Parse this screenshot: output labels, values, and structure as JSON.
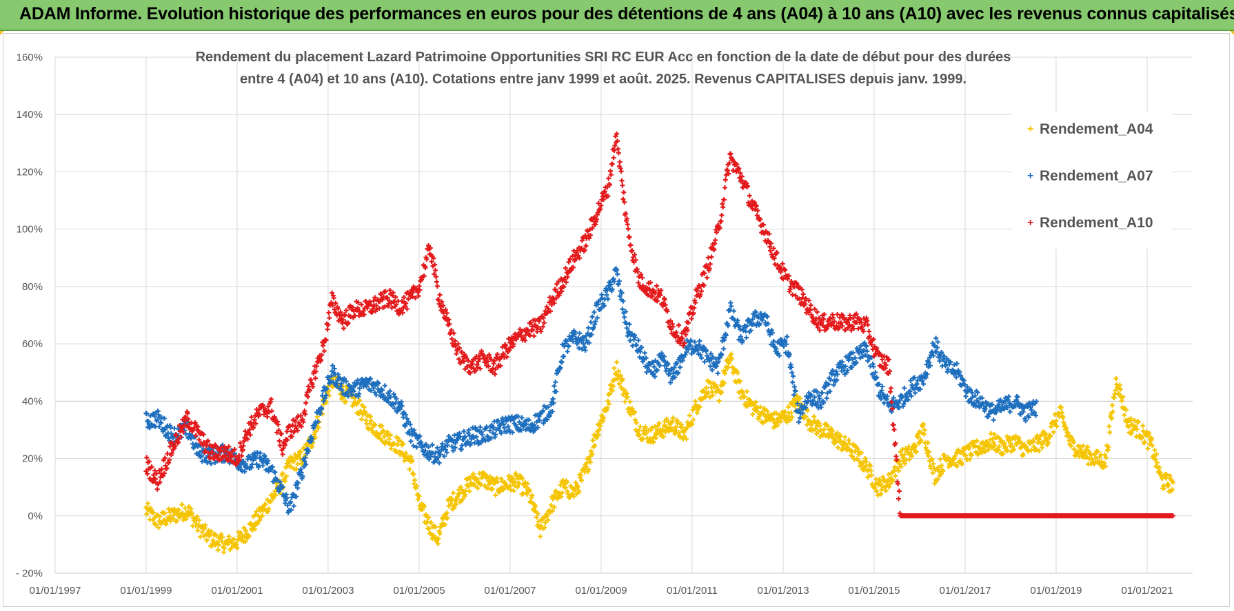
{
  "banner": {
    "text": "ADAM Informe. Evolution historique des performances en euros pour des détentions de 4 ans (A04) à 10 ans (A10) avec les revenus connus capitalisés"
  },
  "chart_data": {
    "type": "scatter",
    "title_line1": "Rendement du placement Lazard Patrimoine Opportunities SRI RC EUR Acc  en fonction de la date de début pour des durées",
    "title_line2": "entre 4 (A04) et 10 ans (A10).  Cotations entre janv 1999 et août. 2025. Revenus CAPITALISES depuis janv. 1999.",
    "xlabel": "",
    "ylabel": "",
    "x_axis": {
      "type": "date",
      "min": "1997-01-01",
      "max": "2022-01-01",
      "ticks": [
        "01/01/1997",
        "01/01/1999",
        "01/01/2001",
        "01/01/2003",
        "01/01/2005",
        "01/01/2007",
        "01/01/2009",
        "01/01/2011",
        "01/01/2013",
        "01/01/2015",
        "01/01/2017",
        "01/01/2019",
        "01/01/2021"
      ]
    },
    "y_axis": {
      "min": -20,
      "max": 160,
      "unit": "%",
      "ticks": [
        "- 20%",
        "0%",
        "20%",
        "40%",
        "60%",
        "80%",
        "100%",
        "120%",
        "140%",
        "160%"
      ]
    },
    "grid": true,
    "legend_position": "top-right",
    "marker": "+",
    "series": [
      {
        "name": "Rendement_A04",
        "color": "#f5c400",
        "points": [
          [
            "1999-01-01",
            2
          ],
          [
            "1999-04-01",
            -2
          ],
          [
            "1999-08-01",
            0
          ],
          [
            "1999-12-01",
            2
          ],
          [
            "2000-03-01",
            -4
          ],
          [
            "2000-06-01",
            -8
          ],
          [
            "2000-10-01",
            -10
          ],
          [
            "2001-01-01",
            -9
          ],
          [
            "2001-04-01",
            -5
          ],
          [
            "2001-07-01",
            0
          ],
          [
            "2001-10-01",
            6
          ],
          [
            "2002-01-01",
            12
          ],
          [
            "2002-03-01",
            18
          ],
          [
            "2002-06-01",
            20
          ],
          [
            "2002-09-01",
            27
          ],
          [
            "2002-12-01",
            40
          ],
          [
            "2003-02-01",
            47
          ],
          [
            "2003-05-01",
            43
          ],
          [
            "2003-08-01",
            40
          ],
          [
            "2003-11-01",
            34
          ],
          [
            "2004-02-01",
            30
          ],
          [
            "2004-05-01",
            27
          ],
          [
            "2004-08-01",
            24
          ],
          [
            "2004-11-01",
            18
          ],
          [
            "2005-01-01",
            4
          ],
          [
            "2005-04-01",
            -4
          ],
          [
            "2005-06-01",
            -8
          ],
          [
            "2005-09-01",
            4
          ],
          [
            "2005-12-01",
            8
          ],
          [
            "2006-03-01",
            12
          ],
          [
            "2006-06-01",
            13
          ],
          [
            "2006-09-01",
            10
          ],
          [
            "2006-12-01",
            11
          ],
          [
            "2007-03-01",
            12
          ],
          [
            "2007-06-01",
            8
          ],
          [
            "2007-09-01",
            -5
          ],
          [
            "2007-12-01",
            4
          ],
          [
            "2008-03-01",
            10
          ],
          [
            "2008-06-01",
            8
          ],
          [
            "2008-09-01",
            16
          ],
          [
            "2008-12-01",
            30
          ],
          [
            "2009-03-01",
            40
          ],
          [
            "2009-05-01",
            52
          ],
          [
            "2009-08-01",
            40
          ],
          [
            "2009-11-01",
            30
          ],
          [
            "2010-02-01",
            28
          ],
          [
            "2010-05-01",
            30
          ],
          [
            "2010-08-01",
            32
          ],
          [
            "2010-11-01",
            28
          ],
          [
            "2011-02-01",
            38
          ],
          [
            "2011-05-01",
            45
          ],
          [
            "2011-08-01",
            42
          ],
          [
            "2011-11-01",
            55
          ],
          [
            "2012-02-01",
            43
          ],
          [
            "2012-05-01",
            38
          ],
          [
            "2012-08-01",
            35
          ],
          [
            "2012-11-01",
            33
          ],
          [
            "2013-02-01",
            35
          ],
          [
            "2013-05-01",
            40
          ],
          [
            "2013-08-01",
            33
          ],
          [
            "2013-11-01",
            30
          ],
          [
            "2014-02-01",
            28
          ],
          [
            "2014-05-01",
            25
          ],
          [
            "2014-08-01",
            22
          ],
          [
            "2014-11-01",
            17
          ],
          [
            "2015-02-01",
            10
          ],
          [
            "2015-05-01",
            12
          ],
          [
            "2015-08-01",
            20
          ],
          [
            "2015-11-01",
            22
          ],
          [
            "2016-02-01",
            30
          ],
          [
            "2016-05-01",
            14
          ],
          [
            "2016-08-01",
            20
          ],
          [
            "2016-11-01",
            20
          ],
          [
            "2017-02-01",
            22
          ],
          [
            "2017-05-01",
            24
          ],
          [
            "2017-08-01",
            26
          ],
          [
            "2017-11-01",
            24
          ],
          [
            "2018-02-01",
            26
          ],
          [
            "2018-05-01",
            23
          ],
          [
            "2018-08-01",
            25
          ],
          [
            "2018-11-01",
            28
          ],
          [
            "2019-02-01",
            36
          ],
          [
            "2019-05-01",
            25
          ],
          [
            "2019-08-01",
            22
          ],
          [
            "2019-11-01",
            20
          ],
          [
            "2020-02-01",
            19
          ],
          [
            "2020-05-01",
            48
          ],
          [
            "2020-08-01",
            32
          ],
          [
            "2020-11-01",
            30
          ],
          [
            "2021-02-01",
            25
          ],
          [
            "2021-05-01",
            12
          ],
          [
            "2021-08-01",
            11
          ]
        ]
      },
      {
        "name": "Rendement_A07",
        "color": "#1f6fbf",
        "points": [
          [
            "1999-01-01",
            33
          ],
          [
            "1999-04-01",
            34
          ],
          [
            "1999-08-01",
            28
          ],
          [
            "1999-12-01",
            30
          ],
          [
            "2000-03-01",
            22
          ],
          [
            "2000-06-01",
            21
          ],
          [
            "2000-10-01",
            22
          ],
          [
            "2001-01-01",
            19
          ],
          [
            "2001-04-01",
            18
          ],
          [
            "2001-07-01",
            20
          ],
          [
            "2001-10-01",
            16
          ],
          [
            "2002-01-01",
            8
          ],
          [
            "2002-03-01",
            2
          ],
          [
            "2002-06-01",
            15
          ],
          [
            "2002-09-01",
            30
          ],
          [
            "2002-12-01",
            42
          ],
          [
            "2003-02-01",
            50
          ],
          [
            "2003-05-01",
            45
          ],
          [
            "2003-08-01",
            44
          ],
          [
            "2003-11-01",
            46
          ],
          [
            "2004-02-01",
            45
          ],
          [
            "2004-05-01",
            42
          ],
          [
            "2004-08-01",
            38
          ],
          [
            "2004-11-01",
            28
          ],
          [
            "2005-01-01",
            25
          ],
          [
            "2005-04-01",
            22
          ],
          [
            "2005-06-01",
            21
          ],
          [
            "2005-09-01",
            25
          ],
          [
            "2005-12-01",
            26
          ],
          [
            "2006-03-01",
            28
          ],
          [
            "2006-06-01",
            28
          ],
          [
            "2006-09-01",
            30
          ],
          [
            "2006-12-01",
            32
          ],
          [
            "2007-03-01",
            32
          ],
          [
            "2007-06-01",
            31
          ],
          [
            "2007-09-01",
            34
          ],
          [
            "2007-12-01",
            38
          ],
          [
            "2008-03-01",
            58
          ],
          [
            "2008-06-01",
            62
          ],
          [
            "2008-09-01",
            60
          ],
          [
            "2008-12-01",
            72
          ],
          [
            "2009-03-01",
            78
          ],
          [
            "2009-05-01",
            85
          ],
          [
            "2009-08-01",
            65
          ],
          [
            "2009-11-01",
            58
          ],
          [
            "2010-02-01",
            50
          ],
          [
            "2010-05-01",
            54
          ],
          [
            "2010-08-01",
            48
          ],
          [
            "2010-11-01",
            58
          ],
          [
            "2011-02-01",
            60
          ],
          [
            "2011-05-01",
            55
          ],
          [
            "2011-08-01",
            52
          ],
          [
            "2011-11-01",
            72
          ],
          [
            "2012-02-01",
            62
          ],
          [
            "2012-05-01",
            68
          ],
          [
            "2012-08-01",
            70
          ],
          [
            "2012-11-01",
            58
          ],
          [
            "2013-02-01",
            60
          ],
          [
            "2013-05-01",
            35
          ],
          [
            "2013-08-01",
            42
          ],
          [
            "2013-11-01",
            40
          ],
          [
            "2014-02-01",
            48
          ],
          [
            "2014-05-01",
            52
          ],
          [
            "2014-08-01",
            55
          ],
          [
            "2014-11-01",
            58
          ],
          [
            "2015-02-01",
            45
          ],
          [
            "2015-05-01",
            38
          ],
          [
            "2015-08-01",
            40
          ],
          [
            "2015-11-01",
            45
          ],
          [
            "2016-02-01",
            48
          ],
          [
            "2016-05-01",
            60
          ],
          [
            "2016-08-01",
            52
          ],
          [
            "2016-11-01",
            50
          ],
          [
            "2017-02-01",
            42
          ],
          [
            "2017-05-01",
            40
          ],
          [
            "2017-08-01",
            36
          ],
          [
            "2017-11-01",
            38
          ],
          [
            "2018-02-01",
            40
          ],
          [
            "2018-05-01",
            36
          ],
          [
            "2018-08-01",
            38
          ]
        ]
      },
      {
        "name": "Rendement_A10",
        "color": "#e31a1c",
        "points": [
          [
            "1999-01-01",
            18
          ],
          [
            "1999-04-01",
            12
          ],
          [
            "1999-08-01",
            24
          ],
          [
            "1999-12-01",
            34
          ],
          [
            "2000-03-01",
            28
          ],
          [
            "2000-06-01",
            22
          ],
          [
            "2000-10-01",
            22
          ],
          [
            "2001-01-01",
            20
          ],
          [
            "2001-04-01",
            30
          ],
          [
            "2001-07-01",
            36
          ],
          [
            "2001-10-01",
            38
          ],
          [
            "2002-01-01",
            24
          ],
          [
            "2002-03-01",
            30
          ],
          [
            "2002-06-01",
            33
          ],
          [
            "2002-09-01",
            48
          ],
          [
            "2002-12-01",
            60
          ],
          [
            "2003-02-01",
            75
          ],
          [
            "2003-05-01",
            68
          ],
          [
            "2003-08-01",
            72
          ],
          [
            "2003-11-01",
            72
          ],
          [
            "2004-02-01",
            74
          ],
          [
            "2004-05-01",
            76
          ],
          [
            "2004-08-01",
            73
          ],
          [
            "2004-11-01",
            76
          ],
          [
            "2005-01-01",
            80
          ],
          [
            "2005-04-01",
            94
          ],
          [
            "2005-06-01",
            78
          ],
          [
            "2005-09-01",
            65
          ],
          [
            "2005-12-01",
            55
          ],
          [
            "2006-03-01",
            52
          ],
          [
            "2006-06-01",
            55
          ],
          [
            "2006-09-01",
            52
          ],
          [
            "2006-12-01",
            58
          ],
          [
            "2007-03-01",
            62
          ],
          [
            "2007-06-01",
            65
          ],
          [
            "2007-09-01",
            66
          ],
          [
            "2007-12-01",
            75
          ],
          [
            "2008-03-01",
            82
          ],
          [
            "2008-06-01",
            90
          ],
          [
            "2008-09-01",
            96
          ],
          [
            "2008-12-01",
            106
          ],
          [
            "2009-03-01",
            115
          ],
          [
            "2009-05-01",
            133
          ],
          [
            "2009-08-01",
            100
          ],
          [
            "2009-11-01",
            82
          ],
          [
            "2010-02-01",
            79
          ],
          [
            "2010-05-01",
            76
          ],
          [
            "2010-08-01",
            65
          ],
          [
            "2010-11-01",
            62
          ],
          [
            "2011-02-01",
            76
          ],
          [
            "2011-05-01",
            86
          ],
          [
            "2011-08-01",
            100
          ],
          [
            "2011-11-01",
            125
          ],
          [
            "2012-02-01",
            118
          ],
          [
            "2012-05-01",
            108
          ],
          [
            "2012-08-01",
            100
          ],
          [
            "2012-11-01",
            90
          ],
          [
            "2013-02-01",
            82
          ],
          [
            "2013-05-01",
            78
          ],
          [
            "2013-08-01",
            72
          ],
          [
            "2013-11-01",
            67
          ],
          [
            "2014-02-01",
            68
          ],
          [
            "2014-05-01",
            67
          ],
          [
            "2014-08-01",
            68
          ],
          [
            "2014-11-01",
            66
          ],
          [
            "2015-02-01",
            55
          ],
          [
            "2015-05-01",
            52
          ],
          [
            "2015-08-01",
            0
          ],
          [
            "2016-01-01",
            0
          ],
          [
            "2017-01-01",
            0
          ],
          [
            "2018-01-01",
            0
          ],
          [
            "2019-01-01",
            0
          ],
          [
            "2020-01-01",
            0
          ],
          [
            "2021-01-01",
            0
          ],
          [
            "2021-08-01",
            0
          ]
        ]
      }
    ]
  }
}
